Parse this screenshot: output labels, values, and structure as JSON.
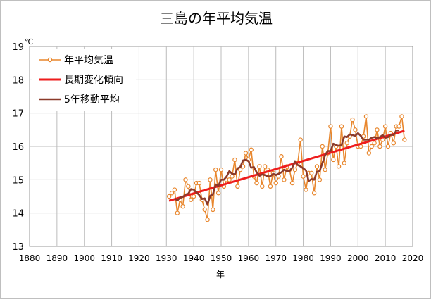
{
  "chart_data": {
    "type": "line",
    "title": "三島の年平均気温",
    "xlabel": "年",
    "ylabel": "℃",
    "xlim": [
      1880,
      2020
    ],
    "ylim": [
      13,
      19
    ],
    "xticks": [
      1880,
      1890,
      1900,
      1910,
      1920,
      1930,
      1940,
      1950,
      1960,
      1970,
      1980,
      1990,
      2000,
      2010,
      2020
    ],
    "yticks": [
      13,
      14,
      15,
      16,
      17,
      18,
      19
    ],
    "grid": true,
    "legend_position": "top-left",
    "colors": {
      "annual": "#e8862c",
      "trend": "#ee1c1c",
      "moving_avg": "#8b3a2a"
    },
    "series": [
      {
        "name": "年平均気温",
        "style": "line-marker",
        "x": [
          1931,
          1932,
          1933,
          1934,
          1935,
          1936,
          1937,
          1938,
          1939,
          1940,
          1941,
          1942,
          1943,
          1944,
          1945,
          1946,
          1947,
          1948,
          1949,
          1950,
          1951,
          1952,
          1953,
          1954,
          1955,
          1956,
          1957,
          1958,
          1959,
          1960,
          1961,
          1962,
          1963,
          1964,
          1965,
          1966,
          1967,
          1968,
          1969,
          1970,
          1971,
          1972,
          1973,
          1974,
          1975,
          1976,
          1977,
          1978,
          1979,
          1980,
          1981,
          1982,
          1983,
          1984,
          1985,
          1986,
          1987,
          1988,
          1989,
          1990,
          1991,
          1992,
          1993,
          1994,
          1995,
          1996,
          1997,
          1998,
          1999,
          2000,
          2001,
          2002,
          2003,
          2004,
          2005,
          2006,
          2007,
          2008,
          2009,
          2010,
          2011,
          2012,
          2013,
          2014,
          2015,
          2016,
          2017
        ],
        "values": [
          14.5,
          14.6,
          14.7,
          14.0,
          14.4,
          14.2,
          15.0,
          14.8,
          14.4,
          14.5,
          14.9,
          14.9,
          14.4,
          14.1,
          13.8,
          15.0,
          14.1,
          15.3,
          14.6,
          15.3,
          14.8,
          15.0,
          15.0,
          15.1,
          15.6,
          14.8,
          15.3,
          15.4,
          15.8,
          15.6,
          15.9,
          15.1,
          14.9,
          15.4,
          14.8,
          15.4,
          15.3,
          14.8,
          15.2,
          14.9,
          15.1,
          15.7,
          15.0,
          15.4,
          15.3,
          14.9,
          15.3,
          15.5,
          16.2,
          15.1,
          14.7,
          15.2,
          15.2,
          14.6,
          15.4,
          15.0,
          16.0,
          15.3,
          15.8,
          16.6,
          15.6,
          16.0,
          15.4,
          16.6,
          15.5,
          16.1,
          16.3,
          16.8,
          16.5,
          16.0,
          16.0,
          16.3,
          16.9,
          15.8,
          16.0,
          16.1,
          16.5,
          16.0,
          16.2,
          16.6,
          16.0,
          16.4,
          16.1,
          16.6,
          16.6,
          16.9,
          16.2
        ]
      },
      {
        "name": "長期変化傾向",
        "style": "line",
        "x": [
          1931,
          2017
        ],
        "values": [
          14.37,
          16.47
        ]
      },
      {
        "name": "5年移動平均",
        "style": "line",
        "x": [
          1933,
          1934,
          1935,
          1936,
          1937,
          1938,
          1939,
          1940,
          1941,
          1942,
          1943,
          1944,
          1945,
          1946,
          1947,
          1948,
          1949,
          1950,
          1951,
          1952,
          1953,
          1954,
          1955,
          1956,
          1957,
          1958,
          1959,
          1960,
          1961,
          1962,
          1963,
          1964,
          1965,
          1966,
          1967,
          1968,
          1969,
          1970,
          1971,
          1972,
          1973,
          1974,
          1975,
          1976,
          1977,
          1978,
          1979,
          1980,
          1981,
          1982,
          1983,
          1984,
          1985,
          1986,
          1987,
          1988,
          1989,
          1990,
          1991,
          1992,
          1993,
          1994,
          1995,
          1996,
          1997,
          1998,
          1999,
          2000,
          2001,
          2002,
          2003,
          2004,
          2005,
          2006,
          2007,
          2008,
          2009,
          2010,
          2011,
          2012,
          2013,
          2014,
          2015
        ],
        "values": [
          14.44,
          14.38,
          14.46,
          14.48,
          14.56,
          14.58,
          14.72,
          14.7,
          14.62,
          14.54,
          14.42,
          14.44,
          14.26,
          14.52,
          14.56,
          14.86,
          14.82,
          15.0,
          15.0,
          15.1,
          15.26,
          15.18,
          15.16,
          15.34,
          15.38,
          15.58,
          15.6,
          15.56,
          15.36,
          15.38,
          15.22,
          15.12,
          15.16,
          15.14,
          15.1,
          15.1,
          15.18,
          15.14,
          15.18,
          15.22,
          15.3,
          15.26,
          15.26,
          15.36,
          15.56,
          15.44,
          15.4,
          15.34,
          15.28,
          14.96,
          15.02,
          15.0,
          15.24,
          15.26,
          15.5,
          15.74,
          15.86,
          15.86,
          16.08,
          16.04,
          16.02,
          16.04,
          16.3,
          16.28,
          16.36,
          16.34,
          16.32,
          16.4,
          16.32,
          16.2,
          16.2,
          16.2,
          16.26,
          16.28,
          16.24,
          16.28,
          16.34,
          16.26,
          16.28,
          16.36,
          16.34,
          16.48,
          16.48
        ]
      }
    ]
  }
}
